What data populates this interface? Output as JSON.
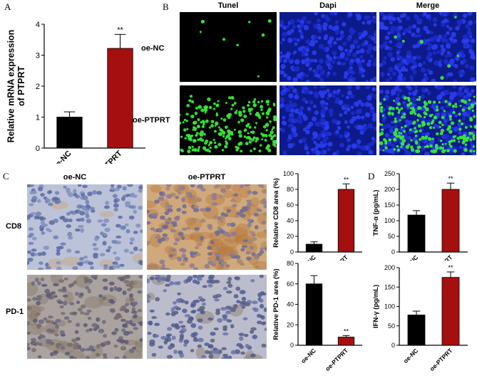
{
  "panels": {
    "a": "A",
    "b": "B",
    "c": "C",
    "d": "D"
  },
  "panel_b": {
    "columns": [
      "Tunel",
      "Dapi",
      "Merge"
    ],
    "rows": [
      "oe-NC",
      "oe-PTPRT"
    ]
  },
  "panel_c": {
    "columns": [
      "oe-NC",
      "oe-PTPRT"
    ],
    "rows": [
      "CD8",
      "PD-1"
    ]
  },
  "colors": {
    "nc": "#000000",
    "ptprt": "#a50f0f",
    "tunel_bg": "#000000",
    "dapi": "#1a2fd0",
    "tunel_green": "#39e639"
  },
  "chart_data": [
    {
      "id": "chart_a",
      "type": "bar",
      "title": "",
      "categories": [
        "oe-NC",
        "oe-PTPRT"
      ],
      "values": [
        1.0,
        3.22
      ],
      "errors": [
        0.17,
        0.45
      ],
      "ylabel": "Relative mRNA expression of PTPRT",
      "ylim": [
        0,
        4
      ],
      "yticks": [
        "0",
        "1",
        "2",
        "3",
        "4"
      ],
      "annotation": "**"
    },
    {
      "id": "chart_cd8",
      "type": "bar",
      "title": "",
      "categories": [
        "oe-NC",
        "oe-PTPRT"
      ],
      "values": [
        10,
        80
      ],
      "errors": [
        3,
        7
      ],
      "ylabel": "Relative CD8 area (%)",
      "ylim": [
        0,
        100
      ],
      "yticks": [
        "0",
        "20",
        "40",
        "60",
        "80",
        "100"
      ],
      "annotation": "**"
    },
    {
      "id": "chart_pd1",
      "type": "bar",
      "title": "",
      "categories": [
        "oe-NC",
        "oe-PTPRT"
      ],
      "values": [
        60,
        8
      ],
      "errors": [
        8,
        1.5
      ],
      "ylabel": "Relative PD-1 area (%)",
      "ylim": [
        0,
        80
      ],
      "yticks": [
        "0",
        "20",
        "40",
        "60",
        "80"
      ],
      "annotation": "**"
    },
    {
      "id": "chart_tnf",
      "type": "bar",
      "title": "",
      "categories": [
        "oe-NC",
        "oe-PTPRT"
      ],
      "values": [
        118,
        200
      ],
      "errors": [
        14,
        20
      ],
      "ylabel": "TNF-α (pg/mL)",
      "ylim": [
        0,
        250
      ],
      "yticks": [
        "0",
        "50",
        "100",
        "150",
        "200",
        "250"
      ],
      "annotation": "**"
    },
    {
      "id": "chart_ifn",
      "type": "bar",
      "title": "",
      "categories": [
        "oe-NC",
        "oe-PTPRT"
      ],
      "values": [
        78,
        175
      ],
      "errors": [
        10,
        14
      ],
      "ylabel": "IFN-γ (pg/mL)",
      "ylim": [
        0,
        200
      ],
      "yticks": [
        "0",
        "50",
        "100",
        "150",
        "200"
      ],
      "annotation": "**"
    }
  ]
}
